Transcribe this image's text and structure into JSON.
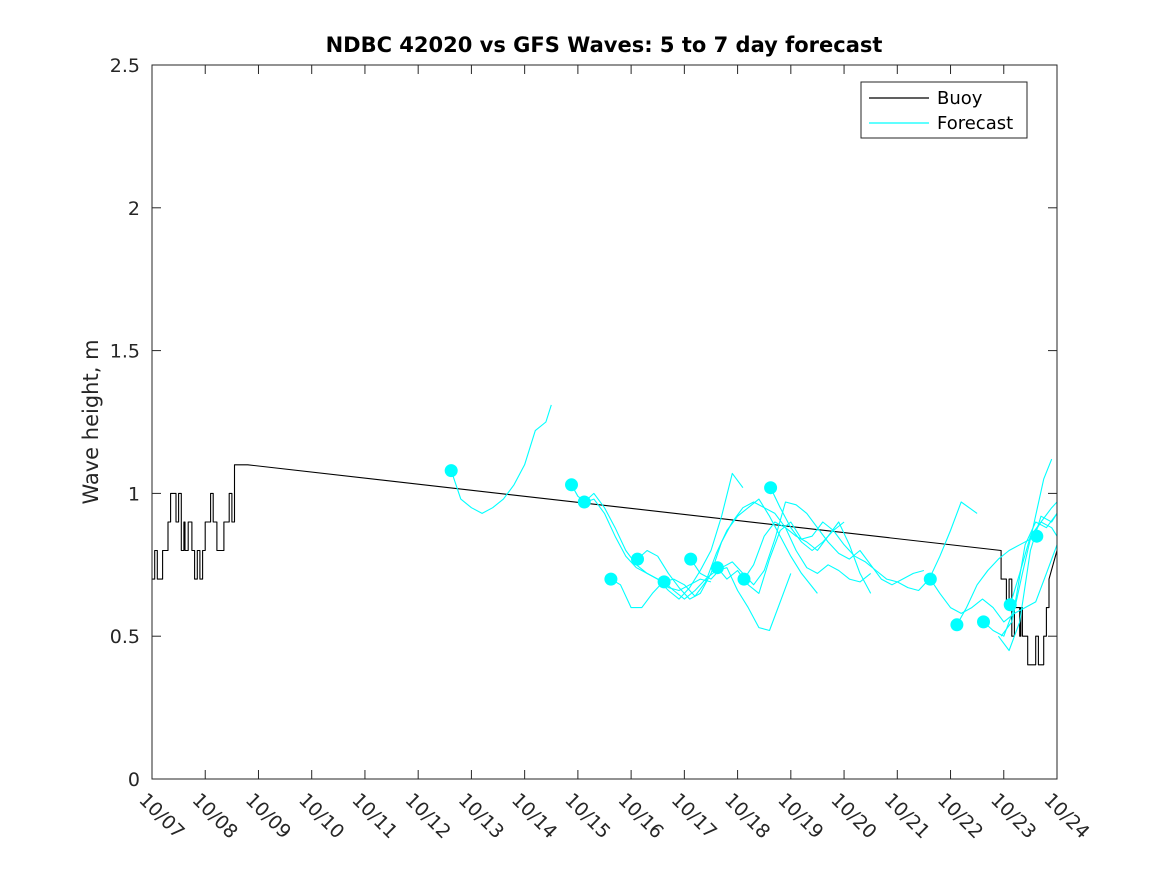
{
  "chart_data": {
    "type": "line",
    "title": "NDBC 42020 vs GFS Waves: 5 to 7 day forecast",
    "xlabel": "",
    "ylabel": "Wave height, m",
    "xlim": [
      0,
      17
    ],
    "ylim": [
      0,
      2.5
    ],
    "x_tick_labels": [
      "10/07",
      "10/08",
      "10/09",
      "10/10",
      "10/11",
      "10/12",
      "10/13",
      "10/14",
      "10/15",
      "10/16",
      "10/17",
      "10/18",
      "10/19",
      "10/20",
      "10/21",
      "10/22",
      "10/23",
      "10/24"
    ],
    "y_ticks": [
      0,
      0.5,
      1,
      1.5,
      2,
      2.5
    ],
    "y_tick_labels": [
      "0",
      "0.5",
      "1",
      "1.5",
      "2",
      "2.5"
    ],
    "legend": {
      "placement": "top-right",
      "entries": [
        {
          "label": "Buoy",
          "color": "#000000"
        },
        {
          "label": "Forecast",
          "color": "#00ffff"
        }
      ]
    },
    "colors": {
      "buoy": "#000000",
      "forecast": "#00ffff",
      "axis": "#262626"
    },
    "series": [
      {
        "name": "Buoy",
        "x": [
          0,
          0.05,
          0.05,
          0.1,
          0.1,
          0.2,
          0.2,
          0.3,
          0.3,
          0.35,
          0.35,
          0.45,
          0.45,
          0.5,
          0.5,
          0.55,
          0.55,
          0.6,
          0.6,
          0.62,
          0.62,
          0.68,
          0.68,
          0.75,
          0.75,
          0.8,
          0.8,
          0.85,
          0.85,
          0.9,
          0.9,
          0.95,
          0.95,
          1.0,
          1.0,
          1.05,
          1.05,
          1.1,
          1.1,
          1.15,
          1.15,
          1.22,
          1.22,
          1.3,
          1.3,
          1.35,
          1.35,
          1.38,
          1.38,
          1.42,
          1.42,
          1.45,
          1.45,
          1.5,
          1.5,
          1.55,
          1.55,
          1.62,
          1.62,
          1.68,
          1.68,
          1.75,
          1.75,
          1.8,
          1.8,
          15.95,
          15.95,
          16.05,
          16.05,
          16.1,
          16.1,
          16.15,
          16.15,
          16.2,
          16.2,
          16.3,
          16.3,
          16.32,
          16.32,
          16.35,
          16.35,
          16.4,
          16.4,
          16.45,
          16.45,
          16.6,
          16.6,
          16.65,
          16.65,
          16.75,
          16.75,
          16.8,
          16.8,
          16.85,
          16.85,
          17.0
        ],
        "y": [
          0.7,
          0.7,
          0.8,
          0.8,
          0.7,
          0.7,
          0.8,
          0.8,
          0.9,
          0.9,
          1.0,
          1.0,
          0.9,
          0.9,
          1.0,
          1.0,
          0.8,
          0.8,
          0.9,
          0.9,
          0.8,
          0.8,
          0.9,
          0.9,
          0.8,
          0.8,
          0.7,
          0.7,
          0.8,
          0.8,
          0.7,
          0.7,
          0.8,
          0.8,
          0.9,
          0.9,
          0.9,
          0.9,
          1.0,
          1.0,
          0.9,
          0.9,
          0.8,
          0.8,
          0.8,
          0.8,
          0.9,
          0.9,
          0.9,
          0.9,
          0.9,
          0.9,
          1.0,
          1.0,
          0.9,
          0.9,
          1.1,
          1.1,
          1.1,
          1.1,
          1.1,
          1.1,
          1.1,
          1.1,
          1.1,
          0.8,
          0.7,
          0.7,
          0.6,
          0.6,
          0.7,
          0.7,
          0.5,
          0.5,
          0.6,
          0.6,
          0.5,
          0.5,
          0.6,
          0.6,
          0.5,
          0.5,
          0.5,
          0.5,
          0.4,
          0.4,
          0.5,
          0.5,
          0.4,
          0.4,
          0.5,
          0.5,
          0.6,
          0.6,
          0.7,
          0.8
        ]
      },
      {
        "name": "Forecast 1",
        "x": [
          5.62,
          5.8,
          6.0,
          6.2,
          6.4,
          6.6,
          6.8,
          7.0,
          7.2,
          7.4,
          7.5
        ],
        "y": [
          1.08,
          0.98,
          0.95,
          0.93,
          0.95,
          0.98,
          1.03,
          1.1,
          1.22,
          1.25,
          1.31
        ]
      },
      {
        "name": "Forecast 2",
        "x": [
          7.88,
          8.0,
          8.15,
          8.3,
          8.5,
          8.7,
          8.9,
          9.1,
          9.3,
          9.5,
          9.7,
          9.9,
          10.1,
          10.3,
          10.5
        ],
        "y": [
          1.03,
          0.99,
          0.97,
          0.98,
          0.93,
          0.85,
          0.78,
          0.74,
          0.72,
          0.7,
          0.67,
          0.66,
          0.68,
          0.7,
          0.69
        ]
      },
      {
        "name": "Forecast 3",
        "x": [
          8.12,
          8.3,
          8.5,
          8.7,
          8.9,
          9.1,
          9.3,
          9.5,
          9.7,
          9.9,
          10.1,
          10.3,
          10.5,
          10.7,
          10.9,
          11.1
        ],
        "y": [
          0.97,
          1.0,
          0.95,
          0.88,
          0.8,
          0.75,
          0.72,
          0.7,
          0.66,
          0.63,
          0.67,
          0.73,
          0.8,
          0.92,
          1.07,
          1.02
        ]
      },
      {
        "name": "Forecast 4",
        "x": [
          8.62,
          8.8,
          9.0,
          9.2,
          9.4,
          9.6,
          9.8,
          10.0,
          10.2,
          10.4,
          10.6,
          10.8,
          11.0,
          11.2,
          11.4,
          11.6,
          11.8,
          12.0,
          12.2,
          12.5
        ],
        "y": [
          0.7,
          0.68,
          0.6,
          0.6,
          0.65,
          0.69,
          0.7,
          0.68,
          0.64,
          0.69,
          0.79,
          0.87,
          0.92,
          0.95,
          0.98,
          0.92,
          0.85,
          0.78,
          0.72,
          0.65
        ]
      },
      {
        "name": "Forecast 5",
        "x": [
          9.12,
          9.3,
          9.5,
          9.7,
          9.9,
          10.1,
          10.3,
          10.5,
          10.7,
          10.9,
          11.1,
          11.3,
          11.5,
          11.7,
          11.9,
          12.1,
          12.3,
          12.5,
          12.7,
          12.9,
          13.1,
          13.3,
          13.5
        ],
        "y": [
          0.77,
          0.8,
          0.78,
          0.72,
          0.67,
          0.63,
          0.65,
          0.72,
          0.83,
          0.9,
          0.95,
          0.97,
          0.95,
          0.93,
          0.88,
          0.8,
          0.74,
          0.72,
          0.75,
          0.73,
          0.7,
          0.69,
          0.72
        ]
      },
      {
        "name": "Forecast 6",
        "x": [
          9.62,
          9.8,
          10.0,
          10.2,
          10.4,
          10.6,
          10.8,
          11.0,
          11.2,
          11.4,
          11.6,
          11.8,
          12.0
        ],
        "y": [
          0.69,
          0.66,
          0.63,
          0.66,
          0.7,
          0.73,
          0.74,
          0.66,
          0.6,
          0.53,
          0.52,
          0.62,
          0.72
        ]
      },
      {
        "name": "Forecast 7",
        "x": [
          10.12,
          10.3,
          10.5,
          10.7,
          10.9,
          11.1,
          11.3,
          11.5,
          11.7,
          11.9,
          12.1,
          12.3,
          12.5,
          12.7,
          12.9,
          13.1,
          13.3,
          13.5,
          13.7,
          13.9,
          14.1,
          14.3,
          14.5
        ],
        "y": [
          0.77,
          0.72,
          0.7,
          0.74,
          0.76,
          0.72,
          0.68,
          0.73,
          0.84,
          0.97,
          0.96,
          0.93,
          0.88,
          0.83,
          0.79,
          0.77,
          0.8,
          0.75,
          0.7,
          0.68,
          0.7,
          0.72,
          0.73
        ]
      },
      {
        "name": "Forecast 8",
        "x": [
          10.62,
          10.8,
          11.0,
          11.2,
          11.4,
          11.6,
          11.8,
          12.0,
          12.2,
          12.4,
          12.6,
          12.8,
          13.0,
          13.2,
          13.4,
          13.6,
          13.8,
          14.0,
          14.2,
          14.4,
          14.6,
          14.8,
          15.0,
          15.2,
          15.5
        ],
        "y": [
          0.74,
          0.7,
          0.73,
          0.68,
          0.65,
          0.77,
          0.87,
          0.9,
          0.84,
          0.85,
          0.9,
          0.87,
          0.82,
          0.78,
          0.76,
          0.73,
          0.7,
          0.69,
          0.67,
          0.66,
          0.7,
          0.78,
          0.87,
          0.97,
          0.93
        ]
      },
      {
        "name": "Forecast 9",
        "x": [
          11.12,
          11.3,
          11.5,
          11.7,
          11.9,
          12.1,
          12.3,
          12.5,
          12.7,
          12.9,
          13.1,
          13.3,
          13.5
        ],
        "y": [
          0.7,
          0.75,
          0.85,
          0.9,
          0.88,
          0.85,
          0.83,
          0.8,
          0.85,
          0.9,
          0.82,
          0.72,
          0.65
        ]
      },
      {
        "name": "Forecast 10",
        "x": [
          11.62,
          11.8,
          12.0,
          12.2,
          12.4,
          12.6,
          12.8,
          13.0
        ],
        "y": [
          1.02,
          0.95,
          0.88,
          0.83,
          0.8,
          0.83,
          0.87,
          0.9
        ]
      },
      {
        "name": "Forecast 11",
        "x": [
          14.62,
          14.8,
          15.0,
          15.2,
          15.4,
          15.6,
          15.8,
          16.0,
          16.2,
          16.4,
          16.6,
          16.8,
          17.0
        ],
        "y": [
          0.7,
          0.65,
          0.6,
          0.58,
          0.6,
          0.63,
          0.6,
          0.55,
          0.58,
          0.6,
          0.62,
          0.72,
          0.82
        ]
      },
      {
        "name": "Forecast 12",
        "x": [
          15.12,
          15.3,
          15.5,
          15.7,
          15.9,
          16.1,
          16.3,
          16.5,
          16.7,
          16.9,
          17.0
        ],
        "y": [
          0.54,
          0.6,
          0.68,
          0.73,
          0.77,
          0.8,
          0.82,
          0.84,
          0.9,
          0.95,
          0.97
        ]
      },
      {
        "name": "Forecast 13",
        "x": [
          15.62,
          15.8,
          16.0,
          16.2,
          16.4,
          16.6,
          16.8,
          17.0
        ],
        "y": [
          0.55,
          0.52,
          0.5,
          0.6,
          0.82,
          0.9,
          0.88,
          0.93
        ]
      },
      {
        "name": "Forecast 14",
        "x": [
          16.12,
          16.3,
          16.5,
          16.7,
          16.9,
          17.0
        ],
        "y": [
          0.61,
          0.72,
          0.85,
          0.9,
          0.88,
          0.85
        ]
      },
      {
        "name": "Forecast 15",
        "x": [
          15.9,
          16.1,
          16.3,
          16.5,
          16.7,
          16.9,
          17.0
        ],
        "y": [
          0.5,
          0.45,
          0.55,
          0.8,
          0.92,
          0.9,
          0.93
        ]
      },
      {
        "name": "Forecast 16",
        "x": [
          15.95,
          16.15,
          16.35,
          16.55,
          16.75,
          16.9
        ],
        "y": [
          0.5,
          0.55,
          0.72,
          0.88,
          1.05,
          1.12
        ]
      }
    ],
    "forecast_start_markers": {
      "x": [
        5.62,
        7.88,
        8.12,
        8.62,
        9.12,
        9.62,
        10.12,
        10.62,
        11.12,
        11.62,
        14.62,
        15.12,
        15.62,
        16.12,
        16.62
      ],
      "y": [
        1.08,
        1.03,
        0.97,
        0.7,
        0.77,
        0.69,
        0.77,
        0.74,
        0.7,
        1.02,
        0.7,
        0.54,
        0.55,
        0.61,
        0.85
      ]
    }
  }
}
